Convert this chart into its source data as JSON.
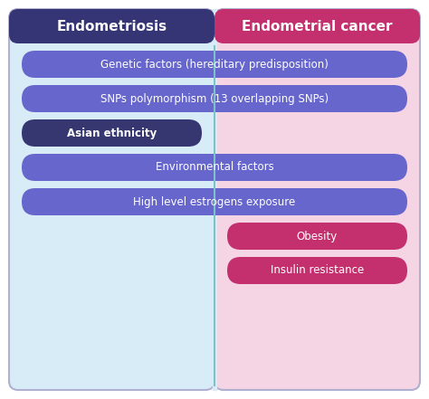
{
  "title_left": "Endometriosis",
  "title_right": "Endometrial cancer",
  "title_left_bg": "#353575",
  "title_right_bg": "#c4306e",
  "left_panel_bg": "#d8ecf8",
  "right_panel_bg": "#f5d5e4",
  "outer_border_color": "#b0b0d0",
  "divider_color": "#80c0c8",
  "shared_rows": [
    {
      "text": "Genetic factors (hereditary predisposition)",
      "span": "both",
      "color": "#6666cc",
      "text_color": "#ffffff",
      "bold": false
    },
    {
      "text": "SNPs polymorphism (13 overlapping SNPs)",
      "span": "both",
      "color": "#6666cc",
      "text_color": "#ffffff",
      "bold": false
    },
    {
      "text": "Asian ethnicity",
      "span": "left",
      "color": "#363670",
      "text_color": "#ffffff",
      "bold": true
    },
    {
      "text": "Environmental factors",
      "span": "both",
      "color": "#6666cc",
      "text_color": "#ffffff",
      "bold": false
    },
    {
      "text": "High level estrogens exposure",
      "span": "both",
      "color": "#6666cc",
      "text_color": "#ffffff",
      "bold": false
    }
  ],
  "right_only_rows": [
    {
      "text": "Obesity",
      "color": "#c4306e",
      "text_color": "#ffffff",
      "bold": false
    },
    {
      "text": "Insulin resistance",
      "color": "#c4306e",
      "text_color": "#ffffff",
      "bold": false
    }
  ],
  "title_fontsize": 11,
  "row_fontsize": 8.5
}
